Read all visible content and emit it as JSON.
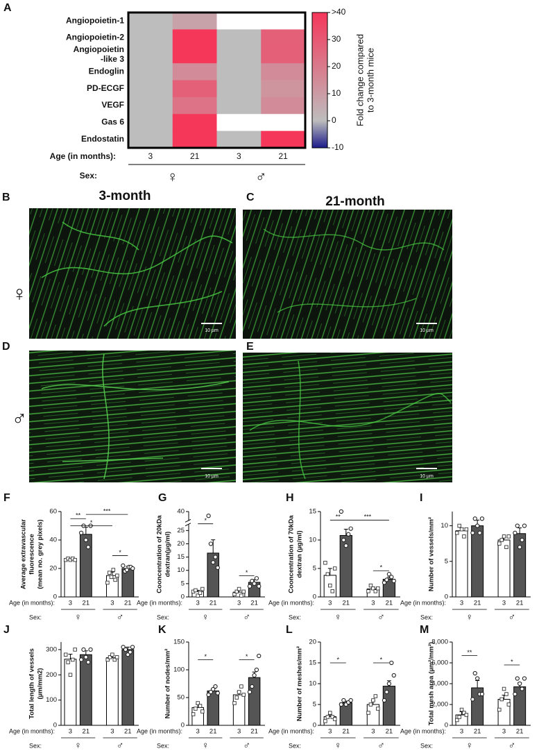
{
  "chart_data": [
    {
      "type": "heatmap",
      "panel": "A",
      "rows": [
        "Angiopoietin-1",
        "Angiopoietin-2",
        [
          "Angiopoietin",
          "-like 3"
        ],
        "Endoglin",
        "PD-ECGF",
        "VEGF",
        "Gas 6",
        "Endostatin"
      ],
      "columns": [
        "3",
        "21",
        "3",
        "21"
      ],
      "groups": [
        "♀",
        "♂"
      ],
      "x_label": "Age (in months):",
      "group_label": "Sex:",
      "values": [
        [
          0,
          8,
          null,
          null
        ],
        [
          0,
          40,
          0,
          28
        ],
        [
          0,
          40,
          0,
          28
        ],
        [
          0,
          15,
          0,
          15
        ],
        [
          0,
          28,
          0,
          12
        ],
        [
          0,
          22,
          0,
          15
        ],
        [
          0,
          40,
          null,
          null
        ],
        [
          0,
          40,
          0,
          40
        ]
      ],
      "colorscale": [
        {
          "value": -10,
          "color": "#1c1a8a"
        },
        {
          "value": 0,
          "color": "#bdbdbd"
        },
        {
          "value": 40,
          "color": "#f5375a"
        }
      ],
      "clim": [
        -10,
        40
      ],
      "cticks": [
        -10,
        0,
        10,
        20,
        30,
        {
          "value": 40,
          "label": ">40"
        }
      ],
      "colorbar_label": [
        "Fold change compared",
        "to 3-month mice"
      ]
    },
    {
      "type": "bar",
      "panel": "F",
      "ylabel": [
        "Average extravascular",
        "fluorescence",
        "(mean no. grey pixels)"
      ],
      "categories": [
        "3",
        "21",
        "3",
        "21"
      ],
      "groups": [
        "♀",
        "♂"
      ],
      "x_label": "Age (in months):",
      "group_label": "Sex:",
      "colors": [
        "#ffffff",
        "#555555",
        "#ffffff",
        "#555555"
      ],
      "markers": [
        "square",
        "circle",
        "square",
        "circle"
      ],
      "ylim": [
        0,
        60
      ],
      "yticks": [
        0,
        20,
        40,
        60
      ],
      "values": [
        26,
        44,
        15,
        20
      ],
      "errors": [
        1,
        5,
        2.5,
        1.5
      ],
      "points": [
        [
          26,
          27,
          26,
          27,
          26
        ],
        [
          45,
          50,
          40,
          35,
          50
        ],
        [
          10,
          17,
          14,
          19,
          12,
          15
        ],
        [
          22,
          18,
          19,
          21,
          21,
          20
        ]
      ],
      "annotations": [
        {
          "label": "**",
          "from": 0,
          "to": 1,
          "y": 55
        },
        {
          "label": "***",
          "from": 1,
          "to": 3,
          "y": 58
        },
        {
          "label": "*",
          "from": 0,
          "to": 2,
          "y": 50
        },
        {
          "label": "*",
          "from": 2,
          "to": 3,
          "y": 29
        }
      ]
    },
    {
      "type": "bar",
      "panel": "G",
      "ylabel": [
        "Cooncentration of 20kDa",
        "dextran(µg/ml)"
      ],
      "categories": [
        "3",
        "21",
        "3",
        "21"
      ],
      "groups": [
        "♀",
        "♂"
      ],
      "x_label": "Age (in months):",
      "group_label": "Sex:",
      "colors": [
        "#ffffff",
        "#555555",
        "#ffffff",
        "#555555"
      ],
      "markers": [
        "square",
        "circle",
        "square",
        "circle"
      ],
      "ylim": [
        0,
        40
      ],
      "yticks": [
        0,
        5,
        10,
        15,
        20,
        25,
        40
      ],
      "axis_break": [
        27,
        38
      ],
      "values": [
        2,
        16.5,
        1.8,
        5.5
      ],
      "errors": [
        0.5,
        5,
        0.7,
        1
      ],
      "points": [
        [
          2,
          2.5,
          0.5,
          1.5,
          3
        ],
        [
          39,
          20,
          13,
          15,
          11
        ],
        [
          1,
          2,
          3,
          0.5,
          2
        ],
        [
          4,
          6,
          5,
          7,
          4
        ]
      ],
      "annotations": [
        {
          "label": "*",
          "from": 0,
          "to": 1,
          "y": 30
        },
        {
          "label": "*",
          "from": 2,
          "to": 3,
          "y": 8
        }
      ]
    },
    {
      "type": "bar",
      "panel": "H",
      "ylabel": [
        "Cooncentration of 70kDa",
        "dextran (µg/ml)"
      ],
      "categories": [
        "3",
        "21",
        "3",
        "21"
      ],
      "groups": [
        "♀",
        "♂"
      ],
      "x_label": "Age (in months):",
      "group_label": "Sex:",
      "colors": [
        "#ffffff",
        "#555555",
        "#ffffff",
        "#555555"
      ],
      "markers": [
        "square",
        "circle",
        "square",
        "circle"
      ],
      "ylim": [
        0,
        15
      ],
      "yticks": [
        0,
        5,
        10,
        15
      ],
      "values": [
        3.8,
        10.8,
        1.4,
        3.1
      ],
      "errors": [
        1.2,
        1.1,
        0.3,
        0.4
      ],
      "points": [
        [
          6,
          4,
          2,
          1,
          5
        ],
        [
          15,
          10,
          9,
          11,
          12
        ],
        [
          1,
          2,
          1.5,
          1,
          1.5
        ],
        [
          2.5,
          3,
          4,
          3.5,
          2.8
        ]
      ],
      "annotations": [
        {
          "label": "**",
          "from": 0,
          "to": 1,
          "y": 13.5
        },
        {
          "label": "***",
          "from": 1,
          "to": 3,
          "y": 13.5
        },
        {
          "label": "*",
          "from": 2,
          "to": 3,
          "y": 4.6
        }
      ]
    },
    {
      "type": "bar",
      "panel": "I",
      "ylabel": [
        "Number of vessels/mm²"
      ],
      "categories": [
        "3",
        "21",
        "3",
        "21"
      ],
      "groups": [
        "♀",
        "♂"
      ],
      "x_label": "Age (in months):",
      "group_label": "Sex:",
      "colors": [
        "#ffffff",
        "#555555",
        "#ffffff",
        "#555555"
      ],
      "markers": [
        "square",
        "circle",
        "square",
        "circle"
      ],
      "ylim": [
        0,
        12
      ],
      "yticks": [
        0,
        5,
        10
      ],
      "values": [
        9.3,
        10,
        8,
        8.9
      ],
      "errors": [
        0.4,
        0.8,
        0.4,
        0.8
      ],
      "points": [
        [
          9,
          10,
          9.5,
          8.5,
          9.5
        ],
        [
          9,
          11,
          10,
          9,
          11
        ],
        [
          7.5,
          8,
          8.5,
          7,
          8.5
        ],
        [
          9,
          10,
          7,
          8,
          10
        ]
      ],
      "annotations": []
    },
    {
      "type": "bar",
      "panel": "J",
      "ylabel": [
        "Total length of vessels",
        "(µm/mm2)"
      ],
      "categories": [
        "3",
        "21",
        "3",
        "21"
      ],
      "groups": [
        "♀",
        "♂"
      ],
      "x_label": "Age (in months):",
      "group_label": "Sex:",
      "colors": [
        "#ffffff",
        "#555555",
        "#ffffff",
        "#555555"
      ],
      "markers": [
        "square",
        "circle",
        "square",
        "circle"
      ],
      "ylim": [
        0,
        330
      ],
      "yticks": [
        0,
        100,
        200,
        300
      ],
      "values": [
        262,
        280,
        268,
        300
      ],
      "errors": [
        20,
        15,
        8,
        10
      ],
      "points": [
        [
          280,
          250,
          200,
          260,
          300
        ],
        [
          260,
          300,
          270,
          250,
          300
        ],
        [
          260,
          270,
          280,
          260,
          270
        ],
        [
          310,
          300,
          280,
          290,
          310
        ]
      ],
      "annotations": []
    },
    {
      "type": "bar",
      "panel": "K",
      "ylabel": [
        "Number of nodes/mm²"
      ],
      "categories": [
        "3",
        "21",
        "3",
        "21"
      ],
      "groups": [
        "♀",
        "♂"
      ],
      "x_label": "Age (in months):",
      "group_label": "Sex:",
      "colors": [
        "#ffffff",
        "#555555",
        "#ffffff",
        "#555555"
      ],
      "markers": [
        "square",
        "circle",
        "square",
        "circle"
      ],
      "ylim": [
        0,
        150
      ],
      "yticks": [
        0,
        50,
        100,
        150
      ],
      "values": [
        32,
        62,
        55,
        86
      ],
      "errors": [
        6,
        4,
        6,
        10
      ],
      "points": [
        [
          20,
          30,
          40,
          35,
          25
        ],
        [
          55,
          60,
          65,
          70,
          58
        ],
        [
          40,
          50,
          60,
          70,
          55
        ],
        [
          60,
          70,
          90,
          100,
          125
        ]
      ],
      "annotations": [
        {
          "label": "*",
          "from": 0,
          "to": 1,
          "y": 118
        },
        {
          "label": "*",
          "from": 2,
          "to": 3,
          "y": 118
        }
      ]
    },
    {
      "type": "bar",
      "panel": "L",
      "ylabel": [
        "Number of meshes/mm²"
      ],
      "categories": [
        "3",
        "21",
        "3",
        "21"
      ],
      "groups": [
        "♀",
        "♂"
      ],
      "x_label": "Age (in months):",
      "group_label": "Sex:",
      "colors": [
        "#ffffff",
        "#555555",
        "#ffffff",
        "#555555"
      ],
      "markers": [
        "square",
        "circle",
        "square",
        "circle"
      ],
      "ylim": [
        0,
        20
      ],
      "yticks": [
        0,
        5,
        10,
        15,
        20
      ],
      "values": [
        2.1,
        5.4,
        5,
        9.4
      ],
      "errors": [
        0.5,
        0.4,
        0.9,
        1.3
      ],
      "points": [
        [
          1,
          2,
          3,
          2,
          1.5
        ],
        [
          5,
          6,
          5,
          5.5,
          6
        ],
        [
          3,
          5,
          6,
          7,
          4
        ],
        [
          6,
          8,
          10,
          15,
          12
        ]
      ],
      "annotations": [
        {
          "label": "*",
          "from": 0,
          "to": 1,
          "y": 15
        },
        {
          "label": "*",
          "from": 2,
          "to": 3,
          "y": 15
        }
      ]
    },
    {
      "type": "bar",
      "panel": "M",
      "ylabel": [
        "Total mesh area (µm²/mm²)"
      ],
      "categories": [
        "3",
        "21",
        "3",
        "21"
      ],
      "groups": [
        "♀",
        "♂"
      ],
      "x_label": "Age (in months):",
      "group_label": "Sex:",
      "colors": [
        "#ffffff",
        "#555555",
        "#ffffff",
        "#555555"
      ],
      "markers": [
        "square",
        "circle",
        "square",
        "circle"
      ],
      "ylim": [
        0,
        8000
      ],
      "yticks": [
        0,
        {
          "value": 2000,
          "label": "2,000"
        },
        {
          "value": 4000,
          "label": "4,000"
        },
        {
          "value": 6000,
          "label": "6,000"
        },
        {
          "value": 8000,
          "label": "8,000"
        }
      ],
      "values": [
        1000,
        3600,
        2500,
        3700
      ],
      "errors": [
        300,
        700,
        400,
        400
      ],
      "points": [
        [
          500,
          800,
          1500,
          1200,
          1000
        ],
        [
          2500,
          5000,
          4500,
          3000,
          3000
        ],
        [
          1500,
          2500,
          3500,
          3000,
          2000
        ],
        [
          3000,
          4500,
          4000,
          3500,
          4500
        ]
      ],
      "annotations": [
        {
          "label": "**",
          "from": 0,
          "to": 1,
          "y": 6700
        },
        {
          "label": "*",
          "from": 2,
          "to": 3,
          "y": 5800
        }
      ]
    }
  ],
  "micrographs": {
    "columns": [
      "3-month",
      "21-month"
    ],
    "rows": [
      "♀",
      "♂"
    ],
    "panels": [
      {
        "letter": "B",
        "scale_bar": "10 µm"
      },
      {
        "letter": "C",
        "scale_bar": "10 µm"
      },
      {
        "letter": "D",
        "scale_bar": "10 µm"
      },
      {
        "letter": "E",
        "scale_bar": "10 µm"
      }
    ]
  }
}
